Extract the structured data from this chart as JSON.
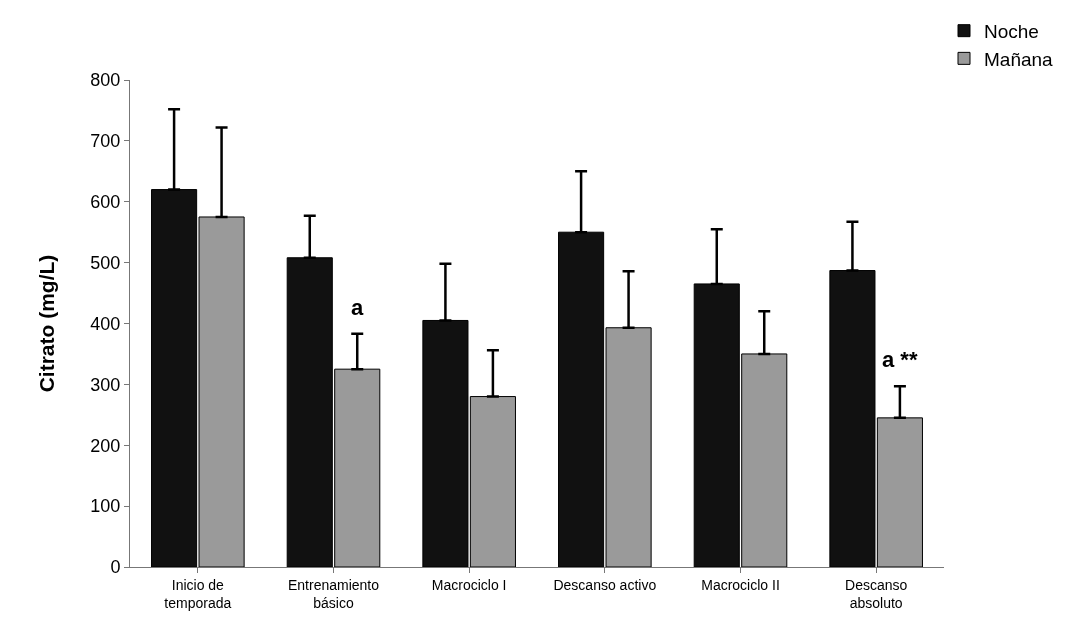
{
  "chart_data": {
    "type": "bar",
    "ylabel": "Citrato (mg/L)",
    "categories": [
      "Inicio de temporada",
      "Entrenamiento básico",
      "Macrociclo I",
      "Descanso activo",
      "Macrociclo II",
      "Descanso absoluto"
    ],
    "series": [
      {
        "name": "Noche",
        "color": "#111111",
        "values": [
          620,
          508,
          405,
          550,
          465,
          487
        ],
        "errors": [
          [
            620,
            752
          ],
          [
            508,
            577
          ],
          [
            405,
            498
          ],
          [
            550,
            650
          ],
          [
            465,
            555
          ],
          [
            487,
            567
          ]
        ]
      },
      {
        "name": "Mañana",
        "color": "#9a9a9a",
        "values": [
          575,
          325,
          280,
          393,
          350,
          245
        ],
        "errors": [
          [
            575,
            722
          ],
          [
            325,
            383
          ],
          [
            280,
            356
          ],
          [
            393,
            486
          ],
          [
            350,
            420
          ],
          [
            245,
            297
          ]
        ]
      }
    ],
    "annotations": [
      {
        "text": "a",
        "x": "Entrenamiento básico",
        "y": 383
      },
      {
        "text": "a **",
        "x": "Descanso absoluto",
        "y": 297
      }
    ],
    "ylim": [
      0,
      800
    ],
    "yticks": [
      0,
      100,
      200,
      300,
      400,
      500,
      600,
      700,
      800
    ],
    "grid": false,
    "legend": "top right"
  }
}
